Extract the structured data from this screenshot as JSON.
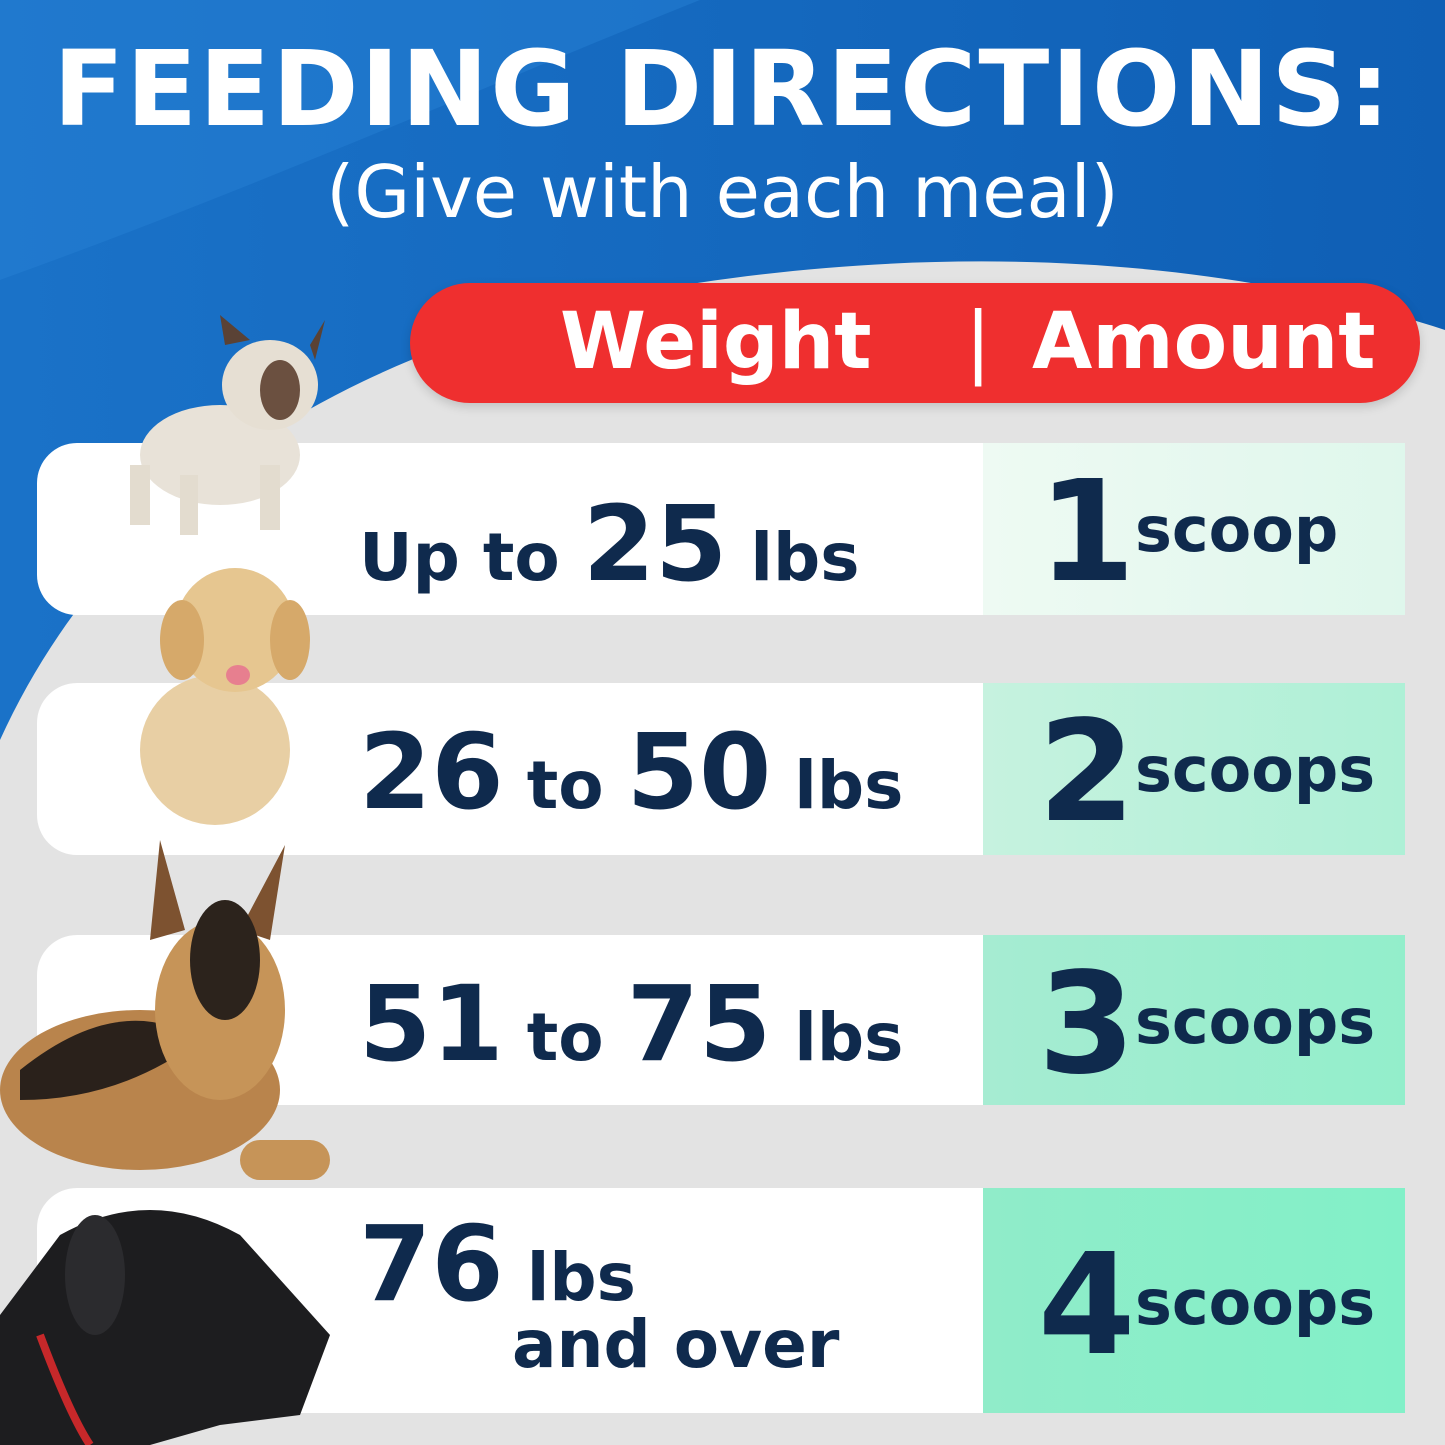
{
  "colors": {
    "blue": "#1466c0",
    "red": "#ef2f2f",
    "navy": "#0f2a4d",
    "mint": "#86f0c8",
    "gray": "#e3e3e3"
  },
  "header": {
    "title": "FEEDING DIRECTIONS:",
    "subtitle": "(Give with each meal)"
  },
  "table_header": {
    "weight": "Weight",
    "divider": "|",
    "amount": "Amount"
  },
  "rows": [
    {
      "dog": "french-bulldog",
      "w1": "Up to ",
      "w2": "25",
      "w3": " lbs",
      "amount": "1",
      "unit": "scoop"
    },
    {
      "dog": "golden-retriever-puppy",
      "w1": "26",
      "w2": " to ",
      "w3": "50",
      "w4": " lbs",
      "amount": "2",
      "unit": "scoops"
    },
    {
      "dog": "german-shepherd",
      "w1": "51",
      "w2": " to ",
      "w3": "75",
      "w4": " lbs",
      "amount": "3",
      "unit": "scoops"
    },
    {
      "dog": "great-dane",
      "w1": "76",
      "w2": " lbs",
      "w3": "and over",
      "amount": "4",
      "unit": "scoops"
    }
  ]
}
